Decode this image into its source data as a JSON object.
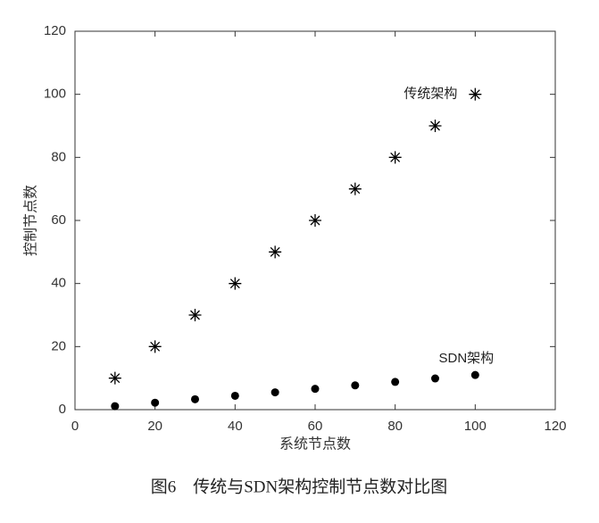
{
  "chart_data": {
    "type": "scatter",
    "caption": "图6　传统与SDN架构控制节点数对比图",
    "xlabel": "系统节点数",
    "ylabel": "控制节点数",
    "xlim": [
      0,
      120
    ],
    "ylim": [
      0,
      120
    ],
    "xticks": [
      0,
      20,
      40,
      60,
      80,
      100,
      120
    ],
    "yticks": [
      0,
      20,
      40,
      60,
      80,
      100,
      120
    ],
    "series": [
      {
        "name": "传统架构",
        "color": "#000000",
        "marker": "*",
        "x": [
          10,
          20,
          30,
          40,
          50,
          60,
          70,
          80,
          90,
          100
        ],
        "values": [
          10,
          20,
          30,
          40,
          50,
          60,
          70,
          80,
          90,
          100
        ]
      },
      {
        "name": "SDN架构",
        "color": "#000000",
        "marker": "o",
        "x": [
          10,
          20,
          30,
          40,
          50,
          60,
          70,
          80,
          90,
          100
        ],
        "values": [
          1.1,
          2.2,
          3.3,
          4.4,
          5.5,
          6.6,
          7.7,
          8.8,
          9.9,
          11
        ]
      }
    ]
  }
}
